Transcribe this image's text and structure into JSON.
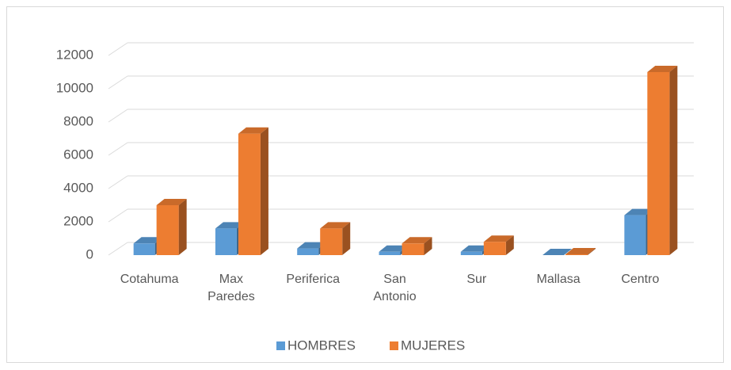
{
  "chart_data": {
    "type": "bar3d",
    "categories": [
      "Cotahuma",
      "Max Paredes",
      "Periferica",
      "San Antonio",
      "Sur",
      "Mallasa",
      "Centro"
    ],
    "series": [
      {
        "name": "HOMBRES",
        "color": "#5b9bd5",
        "values": [
          700,
          1600,
          400,
          200,
          200,
          0,
          2400
        ]
      },
      {
        "name": "MUJERES",
        "color": "#ed7d31",
        "values": [
          3000,
          7300,
          1600,
          700,
          800,
          50,
          11000
        ]
      }
    ],
    "ylim": [
      0,
      12000
    ],
    "yticks": [
      0,
      2000,
      4000,
      6000,
      8000,
      10000,
      12000
    ],
    "grid": true,
    "legend": "bottom"
  }
}
